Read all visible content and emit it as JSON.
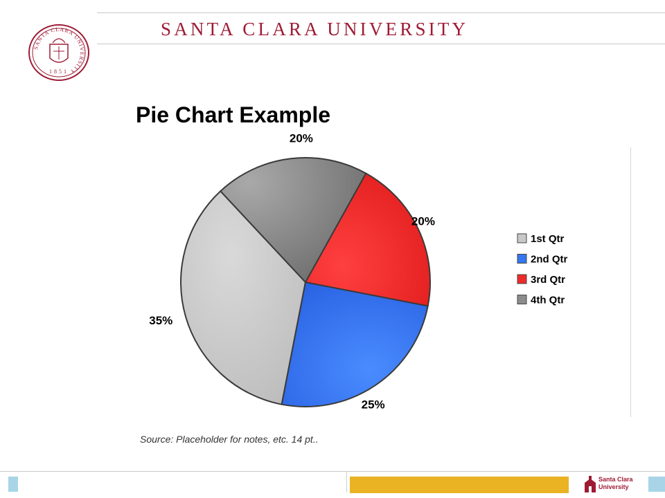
{
  "header": {
    "university_name": "SANTA CLARA UNIVERSITY",
    "seal_text": "SANTA CLARA UNIVERSITY",
    "seal_year": "1851",
    "brand_color": "#9e1b34"
  },
  "slide": {
    "title": "Pie Chart Example",
    "source_note": "Source: Placeholder for notes, etc. 14 pt.."
  },
  "chart_data": {
    "type": "pie",
    "categories": [
      "1st Qtr",
      "2nd Qtr",
      "3rd Qtr",
      "4th Qtr"
    ],
    "values": [
      35,
      25,
      20,
      20
    ],
    "data_labels": [
      "35%",
      "25%",
      "20%",
      "20%"
    ],
    "colors": [
      "#c8c8c8",
      "#3577f0",
      "#ef2a2a",
      "#8c8c8c"
    ],
    "legend_position": "right",
    "title": ""
  },
  "footer": {
    "logo_line1": "Santa Clara",
    "logo_line2": "University",
    "accent_color": "#e9b323",
    "box_color": "#a9d4e8"
  }
}
